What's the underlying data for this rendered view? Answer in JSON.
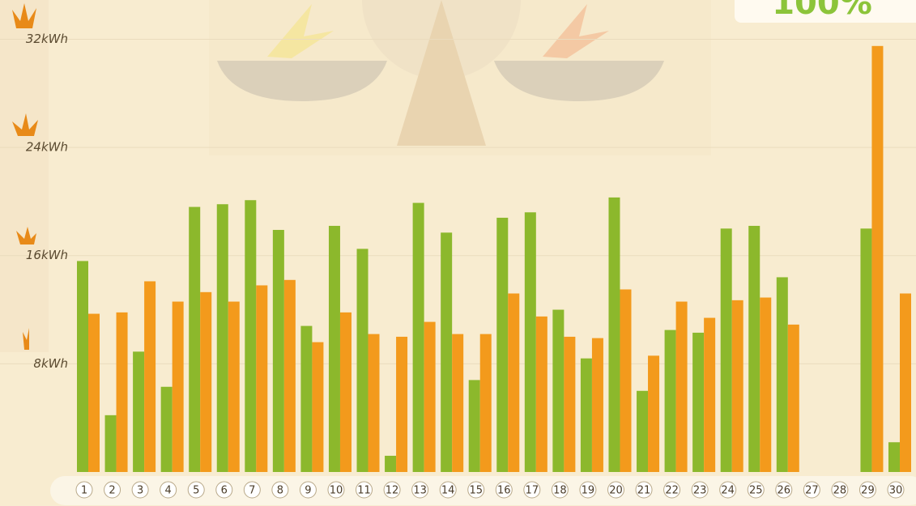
{
  "chart_data": {
    "type": "bar",
    "annotation": "100%",
    "categories": [
      "1",
      "2",
      "3",
      "4",
      "5",
      "6",
      "7",
      "8",
      "9",
      "10",
      "11",
      "12",
      "13",
      "14",
      "15",
      "16",
      "17",
      "18",
      "19",
      "20",
      "21",
      "22",
      "23",
      "24",
      "25",
      "26",
      "27",
      "28",
      "29",
      "30"
    ],
    "series": [
      {
        "color": "#8cb82c",
        "values": [
          15.6,
          4.2,
          8.9,
          6.3,
          19.6,
          19.8,
          20.1,
          17.9,
          10.8,
          18.2,
          16.5,
          1.2,
          19.9,
          17.7,
          6.8,
          18.8,
          19.2,
          12.0,
          8.4,
          20.3,
          6.0,
          10.5,
          10.3,
          18.0,
          18.2,
          14.4,
          null,
          null,
          18.0,
          2.2
        ]
      },
      {
        "color": "#f39a1c",
        "values": [
          11.7,
          11.8,
          14.1,
          12.6,
          13.3,
          12.6,
          13.8,
          14.2,
          9.6,
          11.8,
          10.2,
          10.0,
          11.1,
          10.2,
          10.2,
          13.2,
          11.5,
          10.0,
          9.9,
          13.5,
          8.6,
          12.6,
          11.4,
          12.7,
          12.9,
          10.9,
          null,
          null,
          31.5,
          13.2
        ]
      }
    ],
    "ylim": [
      0,
      34.9
    ],
    "yticks": [
      {
        "value": 8,
        "label": "8kWh"
      },
      {
        "value": 16,
        "label": "16kWh"
      },
      {
        "value": 24,
        "label": "24kWh"
      },
      {
        "value": 32,
        "label": "32kWh"
      }
    ],
    "grid": true
  }
}
